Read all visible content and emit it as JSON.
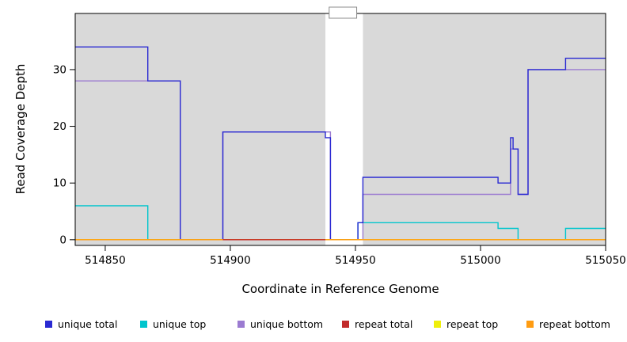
{
  "chart_data": {
    "type": "line",
    "title": "",
    "xlabel": "Coordinate in Reference Genome",
    "ylabel": "Read Coverage Depth",
    "xlim": [
      514838,
      515050
    ],
    "ylim": [
      -1,
      39.9
    ],
    "grid": false,
    "plot_bg": "#d9d9d9",
    "gap_band": {
      "x0": 514938,
      "x1": 514953
    },
    "notch": {
      "x0": 514939.5,
      "x1": 514950.5
    },
    "x_ticks": [
      {
        "value": 514850,
        "label": "514850"
      },
      {
        "value": 514900,
        "label": "514900"
      },
      {
        "value": 514950,
        "label": "514950"
      },
      {
        "value": 515000,
        "label": "515000"
      },
      {
        "value": 515050,
        "label": "515050"
      }
    ],
    "y_ticks": [
      {
        "value": 0,
        "label": "0"
      },
      {
        "value": 10,
        "label": "10"
      },
      {
        "value": 20,
        "label": "20"
      },
      {
        "value": 30,
        "label": "30"
      }
    ],
    "series": [
      {
        "name": "unique top",
        "color": "#00c5cd",
        "points": [
          [
            514838,
            6
          ],
          [
            514867,
            6
          ],
          [
            514867,
            0
          ],
          [
            514951,
            0
          ],
          [
            514951,
            3
          ],
          [
            515007,
            3
          ],
          [
            515007,
            2
          ],
          [
            515015,
            2
          ],
          [
            515015,
            0
          ],
          [
            515034,
            0
          ],
          [
            515034,
            2
          ],
          [
            515050,
            2
          ]
        ]
      },
      {
        "name": "unique bottom",
        "color": "#9b7bd1",
        "points": [
          [
            514838,
            28
          ],
          [
            514880,
            28
          ],
          [
            514880,
            0
          ],
          [
            514897,
            0
          ],
          [
            514897,
            19
          ],
          [
            514940,
            19
          ],
          [
            514940,
            0
          ],
          [
            514953,
            0
          ],
          [
            514953,
            8
          ],
          [
            515012,
            8
          ],
          [
            515012,
            16
          ],
          [
            515015,
            16
          ],
          [
            515015,
            8
          ],
          [
            515019,
            8
          ],
          [
            515019,
            30
          ],
          [
            515050,
            30
          ]
        ]
      },
      {
        "name": "unique total",
        "color": "#2a2ad2",
        "points": [
          [
            514838,
            34
          ],
          [
            514867,
            34
          ],
          [
            514867,
            28
          ],
          [
            514880,
            28
          ],
          [
            514880,
            0
          ],
          [
            514897,
            0
          ],
          [
            514897,
            19
          ],
          [
            514938,
            19
          ],
          [
            514938,
            18
          ],
          [
            514940,
            18
          ],
          [
            514940,
            0
          ],
          [
            514951,
            0
          ],
          [
            514951,
            3
          ],
          [
            514953,
            3
          ],
          [
            514953,
            11
          ],
          [
            515007,
            11
          ],
          [
            515007,
            10
          ],
          [
            515012,
            10
          ],
          [
            515012,
            18
          ],
          [
            515013,
            18
          ],
          [
            515013,
            16
          ],
          [
            515015,
            16
          ],
          [
            515015,
            8
          ],
          [
            515019,
            8
          ],
          [
            515019,
            30
          ],
          [
            515034,
            30
          ],
          [
            515034,
            32
          ],
          [
            515050,
            32
          ]
        ]
      },
      {
        "name": "repeat top",
        "color": "#efef0a",
        "points": [
          [
            514838,
            0
          ],
          [
            515050,
            0
          ]
        ]
      },
      {
        "name": "repeat bottom",
        "color": "#ff9c12",
        "points": [
          [
            514838,
            0
          ],
          [
            515050,
            0
          ]
        ]
      },
      {
        "name": "repeat total",
        "color": "#c22b2b",
        "points": [
          [
            514897,
            0
          ],
          [
            514938,
            0
          ]
        ]
      }
    ],
    "legend": [
      {
        "label": "unique total",
        "color": "#2a2ad2"
      },
      {
        "label": "unique top",
        "color": "#00c5cd"
      },
      {
        "label": "unique bottom",
        "color": "#9b7bd1"
      },
      {
        "label": "repeat total",
        "color": "#c22b2b"
      },
      {
        "label": "repeat top",
        "color": "#efef0a"
      },
      {
        "label": "repeat bottom",
        "color": "#ff9c12"
      }
    ],
    "legend_position": "bottom"
  }
}
